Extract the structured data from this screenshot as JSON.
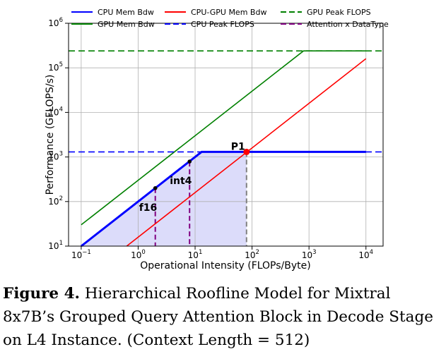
{
  "chart_data": {
    "type": "line",
    "xlabel": "Operational Intensity (FLOPs/Byte)",
    "ylabel": "Performance (GFLOPS/s)",
    "x_scale": "log",
    "y_scale": "log",
    "xlim": [
      0.06,
      20000
    ],
    "ylim": [
      10,
      1000000
    ],
    "x_ticks": [
      {
        "value": 0.1,
        "base": "10",
        "exp": "−1"
      },
      {
        "value": 1,
        "base": "10",
        "exp": "0"
      },
      {
        "value": 10,
        "base": "10",
        "exp": "1"
      },
      {
        "value": 100,
        "base": "10",
        "exp": "2"
      },
      {
        "value": 1000,
        "base": "10",
        "exp": "3"
      },
      {
        "value": 10000,
        "base": "10",
        "exp": "4"
      }
    ],
    "y_ticks": [
      {
        "value": 10,
        "base": "10",
        "exp": "1"
      },
      {
        "value": 100,
        "base": "10",
        "exp": "2"
      },
      {
        "value": 1000,
        "base": "10",
        "exp": "3"
      },
      {
        "value": 10000,
        "base": "10",
        "exp": "4"
      },
      {
        "value": 100000,
        "base": "10",
        "exp": "5"
      },
      {
        "value": 1000000,
        "base": "10",
        "exp": "6"
      }
    ],
    "grid": true,
    "legend_position": "top",
    "series": [
      {
        "name": "CPU Mem Bdw",
        "color": "#0000ff",
        "style": "solid",
        "width": 3,
        "points": [
          [
            0.1,
            10
          ],
          [
            13,
            1300
          ],
          [
            10000,
            1300
          ]
        ]
      },
      {
        "name": "GPU Mem Bdw",
        "color": "#008000",
        "style": "solid",
        "width": 1.6,
        "points": [
          [
            0.1,
            30
          ],
          [
            800,
            240000
          ],
          [
            10000,
            240000
          ]
        ]
      },
      {
        "name": "CPU-GPU Mem Bdw",
        "color": "#ff0000",
        "style": "solid",
        "width": 1.6,
        "points": [
          [
            0.63,
            10
          ],
          [
            10000,
            160000
          ]
        ]
      },
      {
        "name": "CPU Peak FLOPS",
        "color": "#0000ff",
        "style": "dashed",
        "width": 1.6,
        "points": [
          [
            0.06,
            1300
          ],
          [
            20000,
            1300
          ]
        ]
      },
      {
        "name": "GPU Peak FLOPS",
        "color": "#008000",
        "style": "dashed",
        "width": 1.6,
        "points": [
          [
            0.06,
            240000
          ],
          [
            20000,
            240000
          ]
        ]
      },
      {
        "name": "Attention x DataType",
        "color": "#800080",
        "style": "dashed",
        "width": 1.6,
        "points": []
      }
    ],
    "shaded_region": {
      "color": "#dcdcfa",
      "points": [
        [
          0.1,
          10
        ],
        [
          13,
          1300
        ],
        [
          80,
          1300
        ],
        [
          80,
          10
        ]
      ]
    },
    "verticals": [
      {
        "x": 2.0,
        "y_top": 200,
        "color": "#800080"
      },
      {
        "x": 8.0,
        "y_top": 790,
        "color": "#800080"
      },
      {
        "x": 80,
        "y_top": 1300,
        "color": "#808080"
      }
    ],
    "points": [
      {
        "label": "f16",
        "x": 2.0,
        "y": 200,
        "color": "#000000",
        "dx": -23,
        "dy": 32
      },
      {
        "label": "int4",
        "x": 8.0,
        "y": 790,
        "color": "#000000",
        "dx": -28,
        "dy": 32
      },
      {
        "label": "P1",
        "x": 80,
        "y": 1300,
        "color": "#ff0000",
        "dx": -22,
        "dy": -3
      }
    ]
  },
  "caption": {
    "label": "Figure 4.",
    "text": "Hierarchical Roofline Model for Mixtral 8x7B’s Grouped Query Attention Block in Decode Stage on L4 Instance. (Context Length = 512)"
  }
}
